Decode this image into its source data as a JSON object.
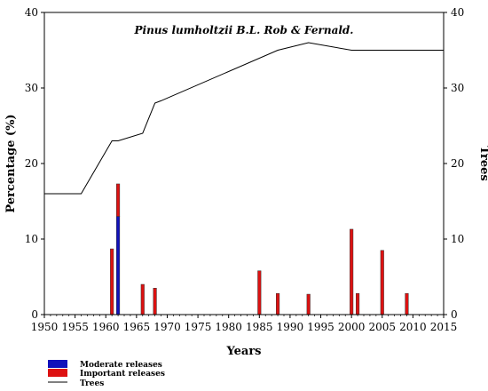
{
  "chart_data": {
    "type": "bar",
    "title": "Pinus lumholtzii B.L. Rob & Fernald.",
    "xlabel": "Years",
    "ylabel": "Percentage (%)",
    "y2label": "Trees",
    "xlim": [
      1950,
      2015
    ],
    "ylim": [
      0,
      40
    ],
    "y2lim": [
      0,
      40
    ],
    "x_ticks": [
      "1950",
      "1955",
      "1960",
      "1965",
      "1970",
      "1975",
      "1980",
      "1985",
      "1990",
      "1995",
      "2000",
      "2005",
      "2010",
      "2015"
    ],
    "y_ticks": [
      "0",
      "10",
      "20",
      "30",
      "40"
    ],
    "y2_ticks": [
      "0",
      "10",
      "20",
      "30",
      "40"
    ],
    "legend_position": "bottom-left",
    "series": [
      {
        "name": "Moderate releases",
        "type": "bar",
        "color": "#1111bb",
        "points": [
          {
            "x": 1962,
            "y": 13.0
          }
        ]
      },
      {
        "name": "Important releases",
        "type": "bar",
        "color": "#dd1111",
        "points": [
          {
            "x": 1961,
            "y": 8.7
          },
          {
            "x": 1962,
            "y": 4.3
          },
          {
            "x": 1966,
            "y": 4.0
          },
          {
            "x": 1968,
            "y": 3.5
          },
          {
            "x": 1985,
            "y": 5.8
          },
          {
            "x": 1988,
            "y": 2.8
          },
          {
            "x": 1993,
            "y": 2.7
          },
          {
            "x": 2000,
            "y": 11.3
          },
          {
            "x": 2001,
            "y": 2.8
          },
          {
            "x": 2005,
            "y": 8.5
          },
          {
            "x": 2009,
            "y": 2.8
          }
        ]
      },
      {
        "name": "Trees",
        "type": "line",
        "axis": "right",
        "color": "#000000",
        "points": [
          {
            "x": 1950,
            "y": 16
          },
          {
            "x": 1956,
            "y": 16
          },
          {
            "x": 1961,
            "y": 23
          },
          {
            "x": 1962,
            "y": 23
          },
          {
            "x": 1966,
            "y": 24
          },
          {
            "x": 1968,
            "y": 28
          },
          {
            "x": 1969,
            "y": 28.3
          },
          {
            "x": 1988,
            "y": 35
          },
          {
            "x": 1993,
            "y": 36
          },
          {
            "x": 2000,
            "y": 35
          },
          {
            "x": 2015,
            "y": 35
          }
        ]
      }
    ]
  }
}
